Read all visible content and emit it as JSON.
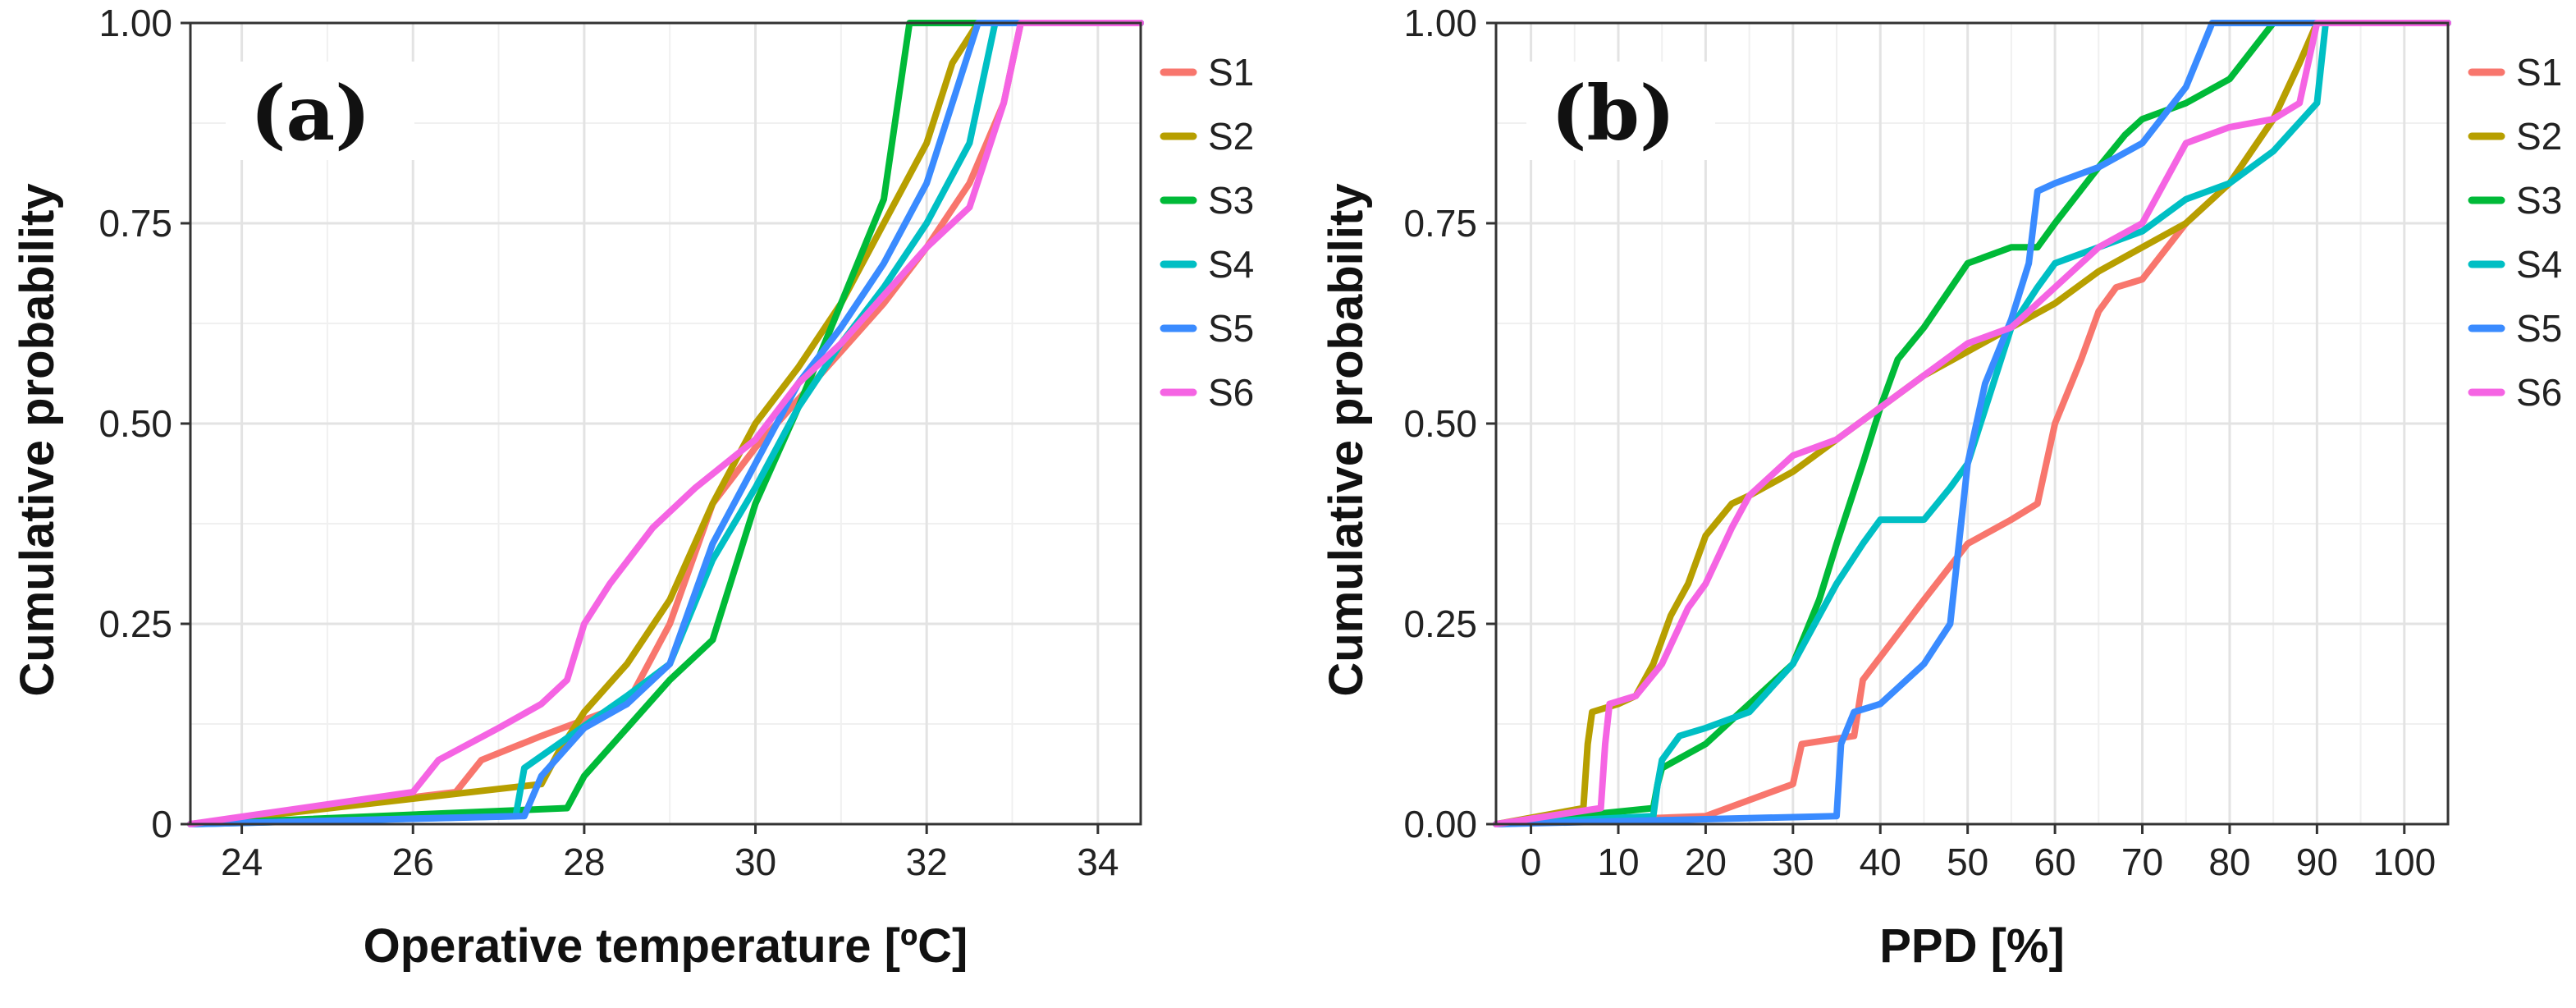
{
  "chart_data": [
    {
      "type": "line",
      "panel_label": "(a)",
      "xlabel": "Operative temperature [ºC]",
      "ylabel": "Cumulative probability",
      "xlim": [
        23.4,
        34.5
      ],
      "ylim": [
        0,
        1
      ],
      "xticks": [
        24,
        26,
        28,
        30,
        32,
        34
      ],
      "xtick_labels": [
        "24",
        "26",
        "28",
        "30",
        "32",
        "34"
      ],
      "yticks": [
        0,
        0.25,
        0.5,
        0.75,
        1.0
      ],
      "ytick_labels": [
        "0",
        "0.25",
        "0.50",
        "0.75",
        "1.00"
      ],
      "grid": true,
      "legend": "right",
      "series": [
        {
          "name": "S1",
          "color": "#F8766D",
          "x": [
            23.4,
            26.5,
            26.8,
            27.5,
            28.5,
            29.0,
            29.5,
            30.0,
            30.5,
            31.0,
            31.5,
            32.0,
            32.5,
            32.9,
            33.1,
            34.5
          ],
          "y": [
            0,
            0.04,
            0.08,
            0.11,
            0.15,
            0.25,
            0.4,
            0.47,
            0.53,
            0.59,
            0.65,
            0.72,
            0.8,
            0.9,
            1.0,
            1.0
          ]
        },
        {
          "name": "S2",
          "color": "#B79F00",
          "x": [
            23.4,
            27.5,
            27.7,
            28.0,
            28.5,
            29.0,
            29.5,
            30.0,
            30.5,
            31.0,
            31.5,
            32.0,
            32.3,
            32.6,
            34.5
          ],
          "y": [
            0,
            0.05,
            0.09,
            0.14,
            0.2,
            0.28,
            0.4,
            0.5,
            0.57,
            0.65,
            0.75,
            0.85,
            0.95,
            1.0,
            1.0
          ]
        },
        {
          "name": "S3",
          "color": "#00BA38",
          "x": [
            23.4,
            27.8,
            28.0,
            28.5,
            29.0,
            29.5,
            30.0,
            30.5,
            31.0,
            31.5,
            31.8,
            32.8,
            34.5
          ],
          "y": [
            0,
            0.02,
            0.06,
            0.12,
            0.18,
            0.23,
            0.4,
            0.52,
            0.65,
            0.78,
            1.0,
            1.0,
            1.0
          ]
        },
        {
          "name": "S4",
          "color": "#00BFC4",
          "x": [
            23.4,
            27.2,
            27.3,
            27.7,
            28.5,
            29.0,
            29.5,
            30.0,
            30.5,
            31.0,
            31.5,
            32.0,
            32.5,
            32.8,
            34.5
          ],
          "y": [
            0,
            0.01,
            0.07,
            0.1,
            0.16,
            0.2,
            0.33,
            0.42,
            0.52,
            0.6,
            0.67,
            0.75,
            0.85,
            1.0,
            1.0
          ]
        },
        {
          "name": "S5",
          "color": "#3A8BFF",
          "x": [
            23.4,
            27.3,
            27.5,
            28.0,
            28.5,
            29.0,
            29.5,
            30.0,
            30.5,
            31.0,
            31.5,
            32.0,
            32.3,
            32.6,
            34.5
          ],
          "y": [
            0,
            0.01,
            0.06,
            0.12,
            0.15,
            0.2,
            0.35,
            0.45,
            0.55,
            0.62,
            0.7,
            0.8,
            0.9,
            1.0,
            1.0
          ]
        },
        {
          "name": "S6",
          "color": "#F564E3",
          "x": [
            23.4,
            26.0,
            26.3,
            27.0,
            27.5,
            27.8,
            28.0,
            28.3,
            28.8,
            29.3,
            30.0,
            30.5,
            31.0,
            31.5,
            32.0,
            32.5,
            32.9,
            33.1,
            34.5
          ],
          "y": [
            0,
            0.04,
            0.08,
            0.12,
            0.15,
            0.18,
            0.25,
            0.3,
            0.37,
            0.42,
            0.48,
            0.55,
            0.6,
            0.66,
            0.72,
            0.77,
            0.9,
            1.0,
            1.0
          ]
        }
      ]
    },
    {
      "type": "line",
      "panel_label": "(b)",
      "xlabel": "PPD [%]",
      "ylabel": "Cumulative probability",
      "xlim": [
        -4,
        105
      ],
      "ylim": [
        0,
        1
      ],
      "xticks": [
        0,
        10,
        20,
        30,
        40,
        50,
        60,
        70,
        80,
        90,
        100
      ],
      "xtick_labels": [
        "0",
        "10",
        "20",
        "30",
        "40",
        "50",
        "60",
        "70",
        "80",
        "90",
        "100"
      ],
      "yticks": [
        0,
        0.25,
        0.5,
        0.75,
        1.0
      ],
      "ytick_labels": [
        "0.00",
        "0.25",
        "0.50",
        "0.75",
        "1.00"
      ],
      "grid": true,
      "legend": "right",
      "series": [
        {
          "name": "S1",
          "color": "#F8766D",
          "x": [
            -4,
            20,
            30,
            31,
            37,
            38,
            45,
            50,
            55,
            58,
            60,
            63,
            65,
            67,
            70,
            75,
            80,
            85,
            88,
            90,
            105
          ],
          "y": [
            0,
            0.01,
            0.05,
            0.1,
            0.11,
            0.18,
            0.28,
            0.35,
            0.38,
            0.4,
            0.5,
            0.58,
            0.64,
            0.67,
            0.68,
            0.75,
            0.8,
            0.88,
            0.95,
            1.0,
            1.0
          ]
        },
        {
          "name": "S2",
          "color": "#B79F00",
          "x": [
            -4,
            6,
            6.5,
            7,
            10,
            12,
            14,
            16,
            18,
            20,
            23,
            25,
            30,
            35,
            40,
            45,
            50,
            55,
            60,
            65,
            70,
            75,
            80,
            85,
            88,
            90,
            105
          ],
          "y": [
            0,
            0.02,
            0.1,
            0.14,
            0.15,
            0.16,
            0.2,
            0.26,
            0.3,
            0.36,
            0.4,
            0.41,
            0.44,
            0.48,
            0.52,
            0.56,
            0.59,
            0.62,
            0.65,
            0.69,
            0.72,
            0.75,
            0.8,
            0.88,
            0.95,
            1.0,
            1.0
          ]
        },
        {
          "name": "S3",
          "color": "#00BA38",
          "x": [
            -4,
            14,
            14.5,
            15,
            20,
            25,
            30,
            33,
            35,
            38,
            40,
            42,
            45,
            50,
            55,
            58,
            60,
            65,
            68,
            70,
            75,
            80,
            85,
            90,
            105
          ],
          "y": [
            0,
            0.02,
            0.05,
            0.07,
            0.1,
            0.15,
            0.2,
            0.28,
            0.35,
            0.45,
            0.52,
            0.58,
            0.62,
            0.7,
            0.72,
            0.72,
            0.75,
            0.82,
            0.86,
            0.88,
            0.9,
            0.93,
            1.0,
            1.0,
            1.0
          ]
        },
        {
          "name": "S4",
          "color": "#00BFC4",
          "x": [
            -4,
            14,
            14.5,
            15,
            17,
            20,
            25,
            30,
            35,
            38,
            40,
            45,
            48,
            50,
            55,
            58,
            60,
            65,
            70,
            75,
            80,
            85,
            90,
            91,
            105
          ],
          "y": [
            0,
            0.01,
            0.05,
            0.08,
            0.11,
            0.12,
            0.14,
            0.2,
            0.3,
            0.35,
            0.38,
            0.38,
            0.42,
            0.45,
            0.62,
            0.67,
            0.7,
            0.72,
            0.74,
            0.78,
            0.8,
            0.84,
            0.9,
            1.0,
            1.0
          ]
        },
        {
          "name": "S5",
          "color": "#3A8BFF",
          "x": [
            -4,
            35,
            35.5,
            37,
            40,
            45,
            48,
            50,
            52,
            55,
            57,
            58,
            60,
            65,
            70,
            75,
            78,
            105
          ],
          "y": [
            0,
            0.01,
            0.1,
            0.14,
            0.15,
            0.2,
            0.25,
            0.45,
            0.55,
            0.63,
            0.7,
            0.79,
            0.8,
            0.82,
            0.85,
            0.92,
            1.0,
            1.0
          ]
        },
        {
          "name": "S6",
          "color": "#F564E3",
          "x": [
            -4,
            8,
            8.5,
            9,
            12,
            15,
            18,
            20,
            23,
            25,
            30,
            35,
            40,
            45,
            50,
            55,
            60,
            65,
            70,
            75,
            80,
            85,
            88,
            89,
            90,
            105
          ],
          "y": [
            0,
            0.02,
            0.1,
            0.15,
            0.16,
            0.2,
            0.27,
            0.3,
            0.37,
            0.41,
            0.46,
            0.48,
            0.52,
            0.56,
            0.6,
            0.62,
            0.67,
            0.72,
            0.75,
            0.85,
            0.87,
            0.88,
            0.9,
            0.95,
            1.0,
            1.0
          ]
        }
      ]
    }
  ]
}
